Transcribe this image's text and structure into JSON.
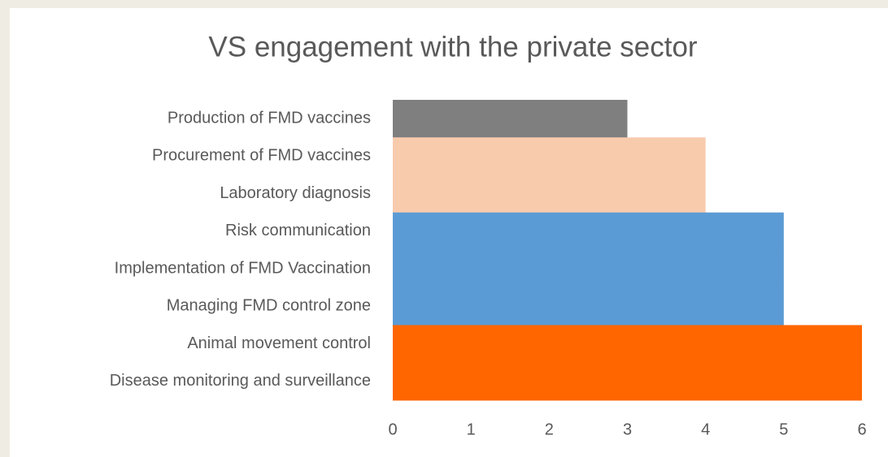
{
  "chart_data": {
    "type": "bar",
    "orientation": "horizontal",
    "title": "VS engagement  with the private sector",
    "categories": [
      "Production of FMD vaccines",
      "Procurement of FMD vaccines",
      "Laboratory diagnosis",
      "Risk communication",
      "Implementation of FMD Vaccination",
      "Managing FMD control zone",
      "Animal movement control",
      "Disease monitoring and surveillance"
    ],
    "values": [
      3,
      4,
      4,
      5,
      5,
      5,
      6,
      6
    ],
    "colors": [
      "#7f7f7f",
      "#f8cbad",
      "#f8cbad",
      "#5b9bd5",
      "#5b9bd5",
      "#5b9bd5",
      "#ff6600",
      "#ff6600"
    ],
    "xlim": [
      0,
      6
    ],
    "xticks": [
      0,
      1,
      2,
      3,
      4,
      5,
      6
    ],
    "grid": false
  }
}
